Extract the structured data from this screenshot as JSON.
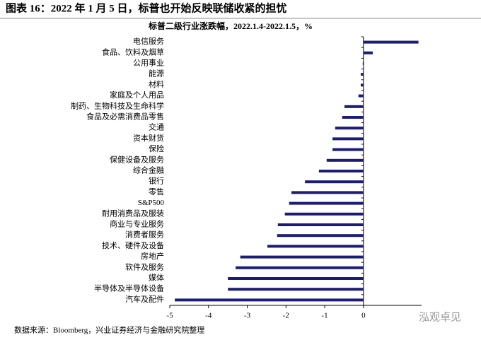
{
  "chart_data": {
    "type": "bar",
    "orientation": "horizontal",
    "title": "图表 16：2022 年 1 月 5 日，标普也开始反映联储收紧的担忧",
    "subtitle": "标普二级行业涨跌幅，2022.1.4-2022.1.5，%",
    "source": "数据来源：Bloomberg，兴业证券经济与金融研究院整理",
    "watermark": "泓观卓见",
    "categories": [
      "电信服务",
      "食品、饮料及烟草",
      "公用事业",
      "能源",
      "材料",
      "家庭及个人用品",
      "制药、生物科技及生命科学",
      "食品及必需消费品零售",
      "交通",
      "资本财货",
      "保险",
      "保健设备及服务",
      "综合金融",
      "银行",
      "零售",
      "S&P500",
      "耐用消费品及服装",
      "商业与专业服务",
      "消费者服务",
      "技术、硬件及设备",
      "房地产",
      "软件及服务",
      "媒体",
      "半导体及半导体设备",
      "汽车及配件"
    ],
    "values": [
      1.42,
      0.24,
      -0.02,
      -0.07,
      -0.07,
      -0.13,
      -0.49,
      -0.55,
      -0.73,
      -0.8,
      -0.8,
      -0.95,
      -1.15,
      -1.51,
      -1.86,
      -1.92,
      -2.03,
      -2.21,
      -2.23,
      -2.48,
      -3.18,
      -3.3,
      -3.5,
      -3.5,
      -4.87
    ],
    "color": "#1c1c78",
    "xlim": [
      -5,
      1.5
    ],
    "xticks": [
      -5,
      -4,
      -3,
      -2,
      -1,
      0
    ]
  }
}
